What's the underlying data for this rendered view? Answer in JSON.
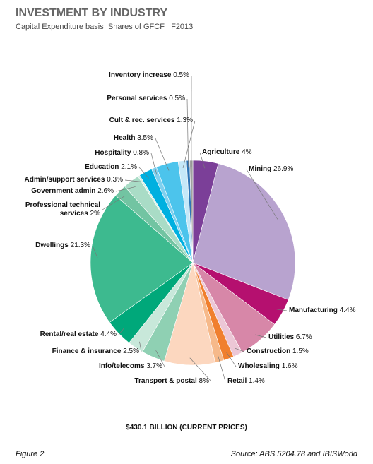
{
  "chart_data": {
    "type": "pie",
    "title": "INVESTMENT BY INDUSTRY",
    "subtitle": "Capital Expenditure basis  Shares of GFCF   F2013",
    "total_label": "$430.1 BILLION (CURRENT PRICES)",
    "figure_label": "Figure 2",
    "source": "Source: ABS 5204.78 and IBISWorld",
    "categories": [
      "Agriculture",
      "Mining",
      "Manufacturing",
      "Utilities",
      "Construction",
      "Wholesaling",
      "Retail",
      "Transport & postal",
      "Info/telecoms",
      "Finance & insurance",
      "Rental/real estate",
      "Dwellings",
      "Professional technical services",
      "Government admin",
      "Admin/support services",
      "Education",
      "Hospitality",
      "Health",
      "Cult & rec. services",
      "Personal services",
      "Inventory increase"
    ],
    "values": [
      4,
      26.9,
      4.4,
      6.7,
      1.5,
      1.6,
      1.4,
      8,
      3.7,
      2.5,
      4.4,
      21.3,
      2,
      2.6,
      0.3,
      2.1,
      0.8,
      3.5,
      1.3,
      0.5,
      0.5
    ],
    "value_labels": [
      "4%",
      "26.9%",
      "4.4%",
      "6.7%",
      "1.5%",
      "1.6%",
      "1.4%",
      "8%",
      "3.7%",
      "2.5%",
      "4.4%",
      "21.3%",
      "2%",
      "2.6%",
      "0.3%",
      "2.1%",
      "0.8%",
      "3.5%",
      "1.3%",
      "0.5%",
      "0.5%"
    ],
    "colors": [
      "#7b3f98",
      "#b8a3cf",
      "#b5106f",
      "#d787a8",
      "#ecc7d6",
      "#f07f2e",
      "#f6b98a",
      "#fcd7bf",
      "#8fd0b3",
      "#c8e8da",
      "#00a87a",
      "#3dba8f",
      "#72c4a2",
      "#a9dcc6",
      "#d8efe4",
      "#00b0e0",
      "#7fd0ef",
      "#4cc4ec",
      "#c5e8f8",
      "#2e75b6",
      "#a0a0a0"
    ]
  }
}
